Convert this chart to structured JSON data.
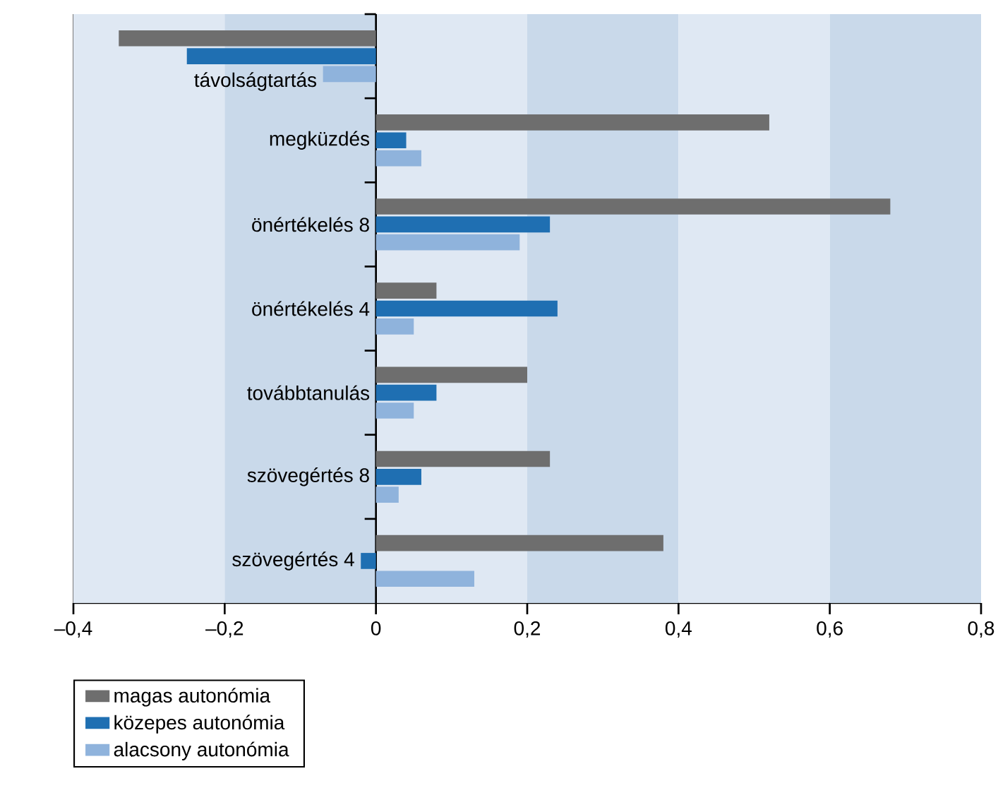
{
  "chart_data": {
    "type": "bar",
    "orientation": "horizontal",
    "categories": [
      "távolságtartás",
      "megküzdés",
      "önértékelés 8",
      "önértékelés 4",
      "továbbtanulás",
      "szövegértés 8",
      "szövegértés 4"
    ],
    "series": [
      {
        "name": "magas autonómia",
        "color": "#6e6e6e",
        "values": [
          -0.34,
          0.52,
          0.68,
          0.08,
          0.2,
          0.23,
          0.38
        ]
      },
      {
        "name": "közepes autonómia",
        "color": "#1f6fb2",
        "values": [
          -0.25,
          0.04,
          0.23,
          0.24,
          0.08,
          0.06,
          -0.02
        ]
      },
      {
        "name": "alacsony autonómia",
        "color": "#8fb3dc",
        "values": [
          -0.07,
          0.06,
          0.19,
          0.05,
          0.05,
          0.03,
          0.13
        ]
      }
    ],
    "xlim": [
      -0.4,
      0.8
    ],
    "xticks": [
      {
        "value": -0.4,
        "label": "–0,4"
      },
      {
        "value": -0.2,
        "label": "–0,2"
      },
      0,
      {
        "value": 0.2,
        "label": "0,2"
      },
      {
        "value": 0.4,
        "label": "0,4"
      },
      {
        "value": 0.6,
        "label": "0,6"
      },
      {
        "value": 0.8,
        "label": "0,8"
      }
    ],
    "bands": [
      {
        "axis": "x",
        "from": -0.4,
        "to": -0.2,
        "color": "#dfe8f3"
      },
      {
        "axis": "x",
        "from": -0.2,
        "to": 0,
        "color": "#c9d9ea"
      },
      {
        "axis": "x",
        "from": 0,
        "to": 0.2,
        "color": "#dfe8f3"
      },
      {
        "axis": "x",
        "from": 0.2,
        "to": 0.4,
        "color": "#c9d9ea"
      },
      {
        "axis": "x",
        "from": 0.4,
        "to": 0.6,
        "color": "#dfe8f3"
      },
      {
        "axis": "x",
        "from": 0.6,
        "to": 0.8,
        "color": "#c9d9ea"
      }
    ],
    "legend": "bottom left",
    "grid": false
  }
}
